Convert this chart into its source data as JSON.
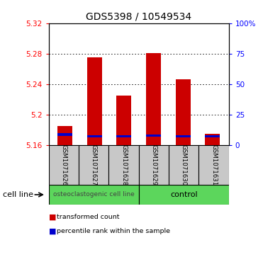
{
  "title": "GDS5398 / 10549534",
  "samples": [
    "GSM1071626",
    "GSM1071627",
    "GSM1071628",
    "GSM1071629",
    "GSM1071630",
    "GSM1071631"
  ],
  "red_tops": [
    5.185,
    5.275,
    5.225,
    5.281,
    5.246,
    5.175
  ],
  "blue_values": [
    5.174,
    5.172,
    5.172,
    5.173,
    5.172,
    5.172
  ],
  "baseline": 5.16,
  "ylim_left": [
    5.16,
    5.32
  ],
  "ylim_right": [
    0,
    100
  ],
  "yticks_left": [
    5.16,
    5.2,
    5.24,
    5.28,
    5.32
  ],
  "yticks_right": [
    0,
    25,
    50,
    75,
    100
  ],
  "ytick_labels_right": [
    "0",
    "25",
    "50",
    "75",
    "100%"
  ],
  "group_labels": [
    "osteoclastogenic cell line",
    "control"
  ],
  "cell_line_label": "cell line",
  "legend_items": [
    {
      "color": "#cc0000",
      "label": "transformed count"
    },
    {
      "color": "#0000cc",
      "label": "percentile rank within the sample"
    }
  ],
  "bar_color": "#cc0000",
  "blue_color": "#0000cc",
  "bar_width": 0.5,
  "bg_xticklabel": "#c8c8c8",
  "bg_group": "#5cd65c",
  "title_fontsize": 10
}
